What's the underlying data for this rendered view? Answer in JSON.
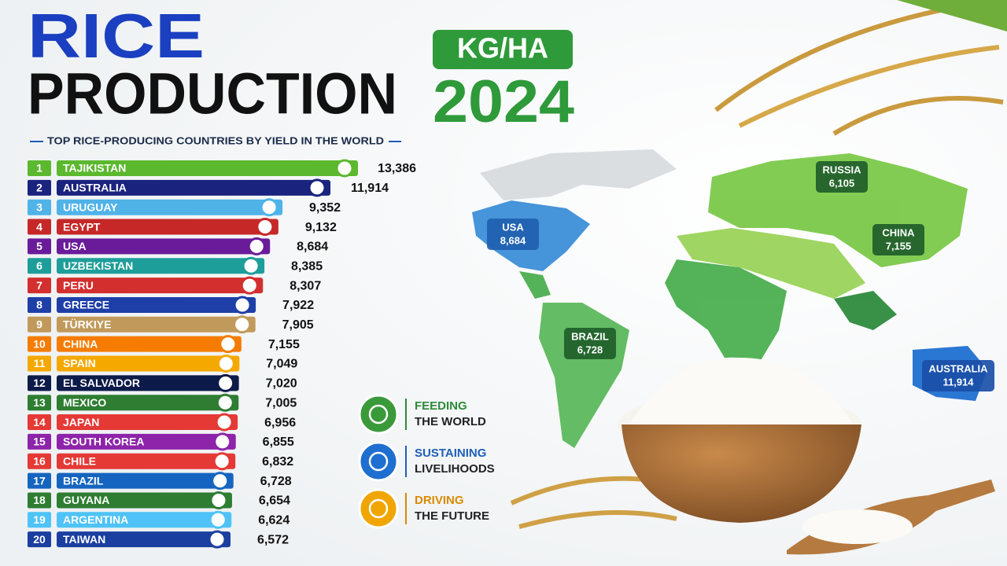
{
  "chart_data": {
    "type": "bar",
    "orientation": "horizontal",
    "title": [
      "RICE",
      "PRODUCTION"
    ],
    "subtitle": "TOP RICE-PRODUCING COUNTRIES BY YIELD IN THE WORLD",
    "unit": "KG/HA",
    "year": "2024",
    "ranks": [
      1,
      2,
      3,
      4,
      5,
      6,
      7,
      8,
      9,
      10,
      11,
      12,
      13,
      14,
      15,
      16,
      17,
      18,
      19,
      20
    ],
    "categories": [
      "TAJIKISTAN",
      "AUSTRALIA",
      "URUGUAY",
      "EGYPT",
      "USA",
      "UZBEKISTAN",
      "PERU",
      "GREECE",
      "TÜRKIYE",
      "CHINA",
      "SPAIN",
      "EL SALVADOR",
      "MEXICO",
      "JAPAN",
      "SOUTH KOREA",
      "CHILE",
      "BRAZIL",
      "GUYANA",
      "ARGENTINA",
      "TAIWAN"
    ],
    "values": [
      13386,
      11914,
      9352,
      9132,
      8684,
      8385,
      8307,
      7922,
      7905,
      7155,
      7049,
      7020,
      7005,
      6956,
      6855,
      6832,
      6728,
      6654,
      6624,
      6572
    ],
    "value_labels": [
      "13,386",
      "11,914",
      "9,352",
      "9,132",
      "8,684",
      "8,385",
      "8,307",
      "7,922",
      "7,905",
      "7,155",
      "7,049",
      "7,020",
      "7,005",
      "6,956",
      "6,855",
      "6,832",
      "6,728",
      "6,654",
      "6,624",
      "6,572"
    ],
    "colors": [
      "#5cb82e",
      "#1a237e",
      "#4fb3e8",
      "#c62828",
      "#6a1b9a",
      "#1e9e9a",
      "#d32f2f",
      "#1e3fa8",
      "#c19a5b",
      "#f57c00",
      "#f5a800",
      "#0d1b4a",
      "#2e7d32",
      "#e53935",
      "#8e24aa",
      "#e53935",
      "#1565c0",
      "#2e7d32",
      "#4fc3f7",
      "#1a3fa0"
    ],
    "map_labels": [
      {
        "name": "USA",
        "value": "8,684"
      },
      {
        "name": "RUSSIA",
        "value": "6,105"
      },
      {
        "name": "CHINA",
        "value": "7,155"
      },
      {
        "name": "BRAZIL",
        "value": "6,728"
      },
      {
        "name": "AUSTRALIA",
        "value": "11,914"
      }
    ],
    "features": [
      {
        "line1": "FEEDING",
        "line2": "THE WORLD"
      },
      {
        "line1": "SUSTAINING",
        "line2": "LIVELIHOODS"
      },
      {
        "line1": "DRIVING",
        "line2": "THE FUTURE"
      }
    ]
  }
}
